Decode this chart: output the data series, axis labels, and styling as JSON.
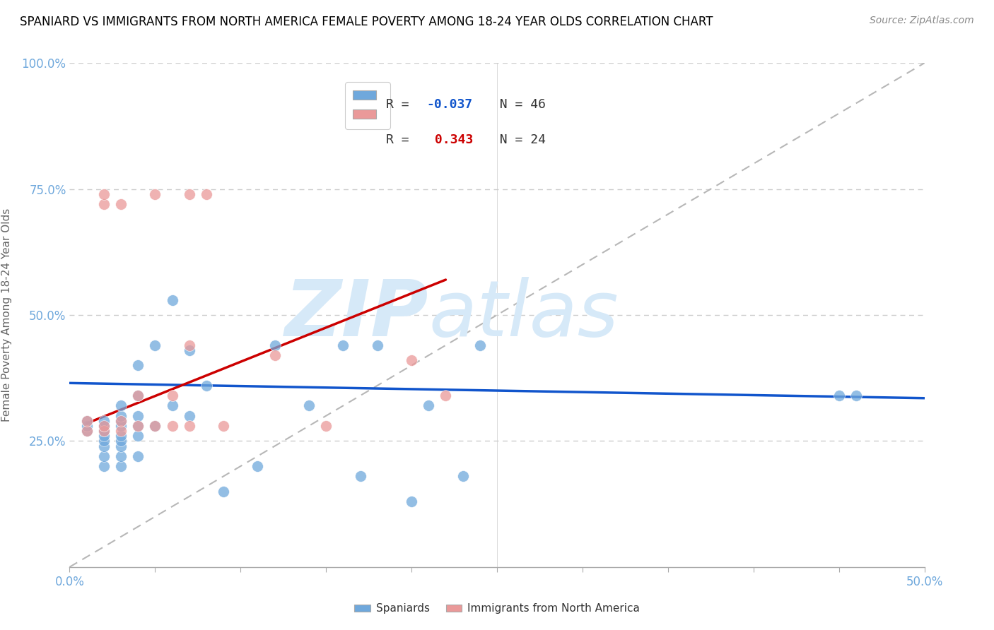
{
  "title": "SPANIARD VS IMMIGRANTS FROM NORTH AMERICA FEMALE POVERTY AMONG 18-24 YEAR OLDS CORRELATION CHART",
  "source": "Source: ZipAtlas.com",
  "ylabel": "Female Poverty Among 18-24 Year Olds",
  "xlim": [
    0,
    0.5
  ],
  "ylim": [
    0,
    1.0
  ],
  "xticks": [
    0.0,
    0.05,
    0.1,
    0.15,
    0.2,
    0.25,
    0.3,
    0.35,
    0.4,
    0.45,
    0.5
  ],
  "yticks": [
    0.0,
    0.25,
    0.5,
    0.75,
    1.0
  ],
  "xtick_labels_show": [
    "0.0%",
    "",
    "",
    "",
    "",
    "",
    "",
    "",
    "",
    "",
    "50.0%"
  ],
  "ytick_labels": [
    "",
    "25.0%",
    "50.0%",
    "75.0%",
    "100.0%"
  ],
  "blue_r": "-0.037",
  "blue_n": "46",
  "pink_r": "0.343",
  "pink_n": "24",
  "blue_color": "#6fa8dc",
  "pink_color": "#ea9999",
  "blue_line_color": "#1155cc",
  "pink_line_color": "#cc0000",
  "ref_line_color": "#b7b7b7",
  "grid_color": "#cccccc",
  "axis_label_color": "#6fa8dc",
  "title_color": "#000000",
  "watermark_zip": "ZIP",
  "watermark_atlas": "atlas",
  "watermark_color": "#d6e9f8",
  "blue_scatter_x": [
    0.01,
    0.01,
    0.01,
    0.02,
    0.02,
    0.02,
    0.02,
    0.02,
    0.02,
    0.02,
    0.02,
    0.03,
    0.03,
    0.03,
    0.03,
    0.03,
    0.03,
    0.03,
    0.03,
    0.03,
    0.04,
    0.04,
    0.04,
    0.04,
    0.04,
    0.04,
    0.05,
    0.05,
    0.06,
    0.06,
    0.07,
    0.07,
    0.08,
    0.09,
    0.11,
    0.12,
    0.14,
    0.16,
    0.17,
    0.18,
    0.2,
    0.21,
    0.23,
    0.24,
    0.45,
    0.46
  ],
  "blue_scatter_y": [
    0.27,
    0.28,
    0.29,
    0.2,
    0.22,
    0.24,
    0.25,
    0.26,
    0.27,
    0.28,
    0.29,
    0.2,
    0.22,
    0.24,
    0.25,
    0.26,
    0.28,
    0.29,
    0.3,
    0.32,
    0.22,
    0.26,
    0.28,
    0.3,
    0.34,
    0.4,
    0.28,
    0.44,
    0.32,
    0.53,
    0.3,
    0.43,
    0.36,
    0.15,
    0.2,
    0.44,
    0.32,
    0.44,
    0.18,
    0.44,
    0.13,
    0.32,
    0.18,
    0.44,
    0.34,
    0.34
  ],
  "pink_scatter_x": [
    0.01,
    0.01,
    0.02,
    0.02,
    0.02,
    0.02,
    0.03,
    0.03,
    0.03,
    0.04,
    0.04,
    0.05,
    0.05,
    0.06,
    0.06,
    0.07,
    0.07,
    0.07,
    0.08,
    0.09,
    0.12,
    0.15,
    0.2,
    0.22
  ],
  "pink_scatter_y": [
    0.27,
    0.29,
    0.27,
    0.28,
    0.72,
    0.74,
    0.27,
    0.29,
    0.72,
    0.28,
    0.34,
    0.28,
    0.74,
    0.28,
    0.34,
    0.28,
    0.44,
    0.74,
    0.74,
    0.28,
    0.42,
    0.28,
    0.41,
    0.34
  ],
  "blue_trend_x": [
    0.0,
    0.5
  ],
  "blue_trend_y": [
    0.365,
    0.335
  ],
  "pink_trend_x": [
    0.01,
    0.22
  ],
  "pink_trend_y": [
    0.285,
    0.57
  ]
}
